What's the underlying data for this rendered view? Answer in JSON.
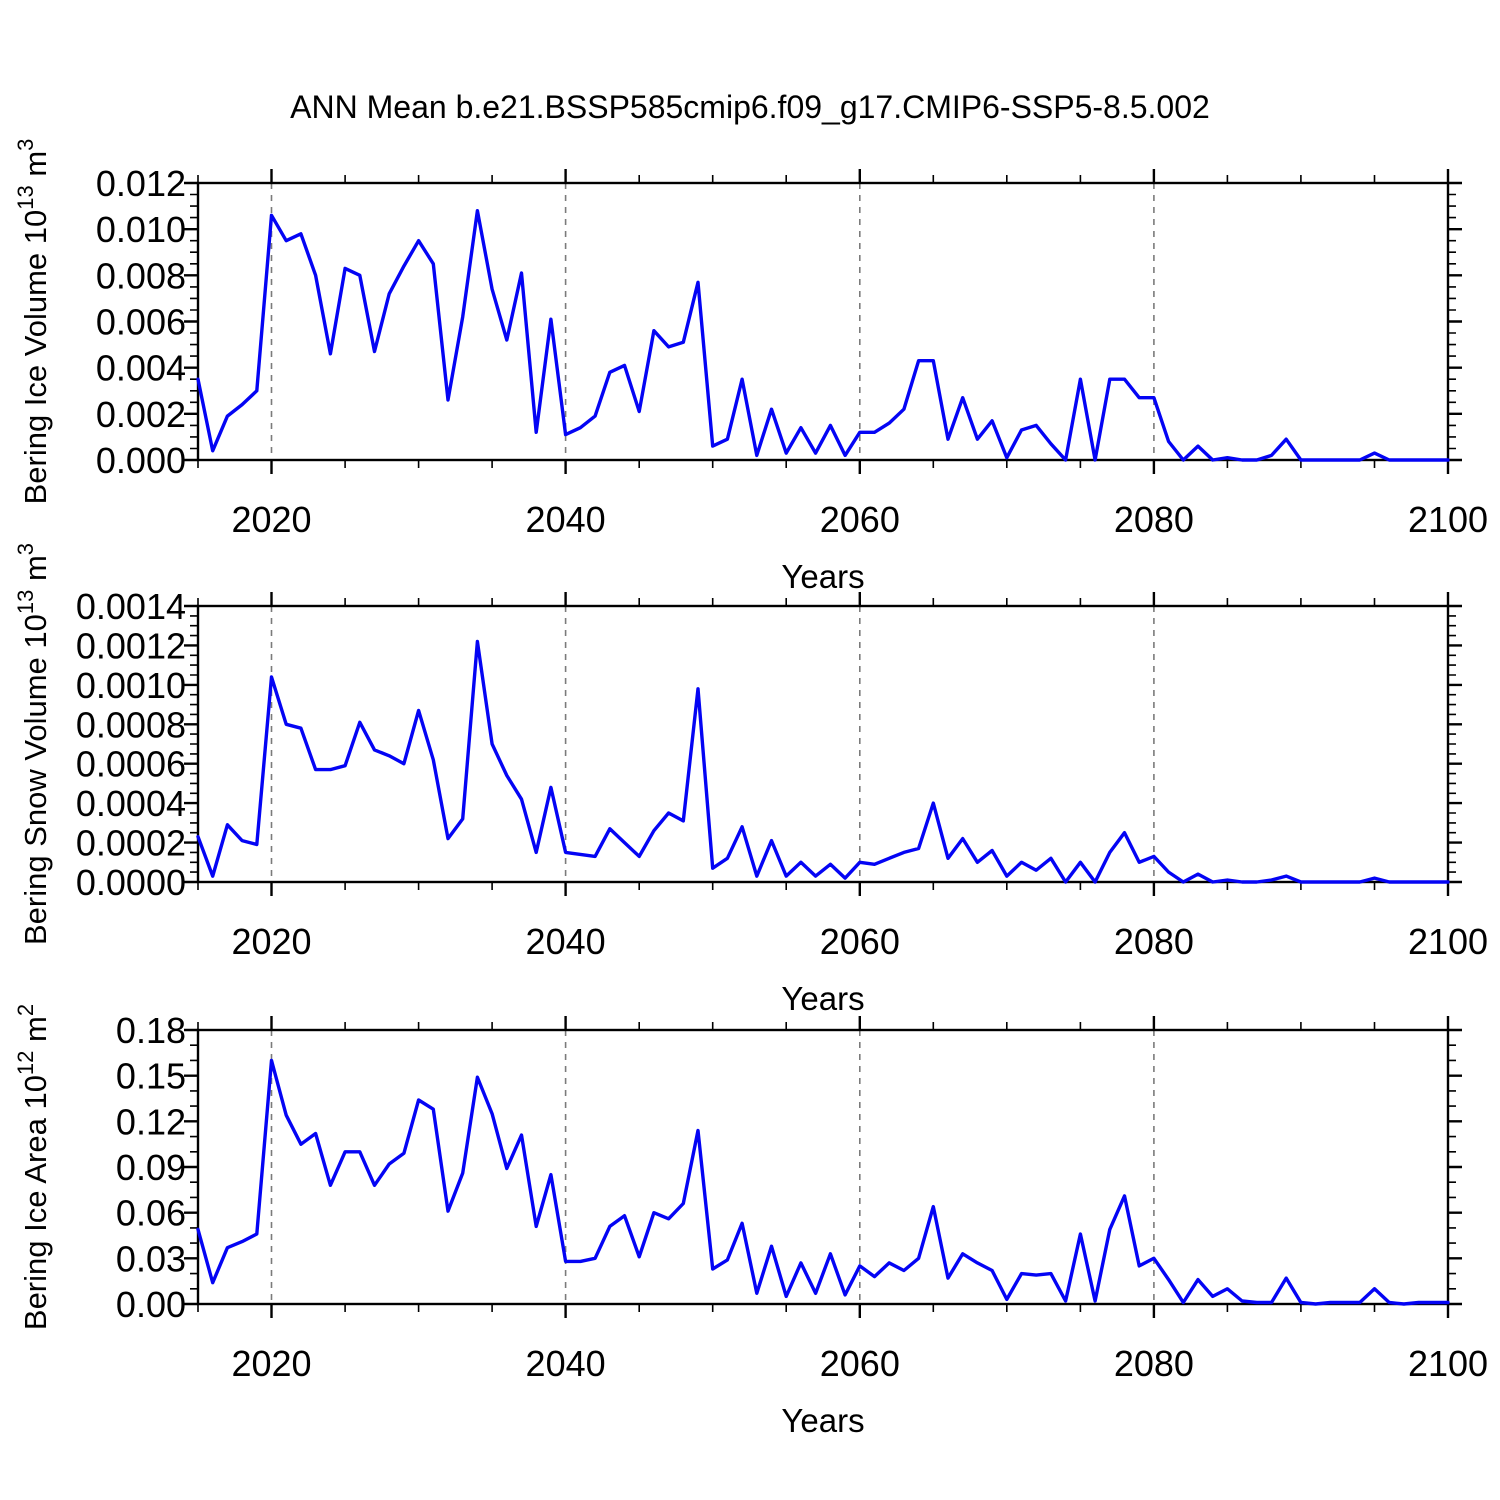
{
  "title": "ANN Mean b.e21.BSSP585cmip6.f09_g17.CMIP6-SSP5-8.5.002",
  "colors": {
    "line": "#0404f4",
    "frame": "#000000",
    "grid": "#7b7b7b",
    "text": "#000000",
    "background": "#ffffff"
  },
  "years": [
    2015,
    2016,
    2017,
    2018,
    2019,
    2020,
    2021,
    2022,
    2023,
    2024,
    2025,
    2026,
    2027,
    2028,
    2029,
    2030,
    2031,
    2032,
    2033,
    2034,
    2035,
    2036,
    2037,
    2038,
    2039,
    2040,
    2041,
    2042,
    2043,
    2044,
    2045,
    2046,
    2047,
    2048,
    2049,
    2050,
    2051,
    2052,
    2053,
    2054,
    2055,
    2056,
    2057,
    2058,
    2059,
    2060,
    2061,
    2062,
    2063,
    2064,
    2065,
    2066,
    2067,
    2068,
    2069,
    2070,
    2071,
    2072,
    2073,
    2074,
    2075,
    2076,
    2077,
    2078,
    2079,
    2080,
    2081,
    2082,
    2083,
    2084,
    2085,
    2086,
    2087,
    2088,
    2089,
    2090,
    2091,
    2092,
    2093,
    2094,
    2095,
    2096,
    2097,
    2098,
    2099,
    2100
  ],
  "chart_data": [
    {
      "type": "line",
      "name": "bering-ice-volume",
      "xlabel": "Years",
      "ylabel": "Bering Ice Volume 10^13 m^3",
      "ylabel_parts": [
        [
          "Bering Ice Volume 10",
          "n"
        ],
        [
          "13",
          "s"
        ],
        [
          " m",
          "n"
        ],
        [
          "3",
          "s"
        ]
      ],
      "xlim": [
        2015,
        2100
      ],
      "x_major_ticks": [
        2020,
        2040,
        2060,
        2080,
        2100
      ],
      "x_tick_labels": [
        "2020",
        "2040",
        "2060",
        "2080",
        "2100"
      ],
      "x_minor_step": 5,
      "grid_x": [
        2020,
        2040,
        2060,
        2080
      ],
      "ylim": [
        0,
        0.012
      ],
      "y_major_step": 0.002,
      "y_minor_step": 0.0005,
      "y_tick_labels": [
        "0.000",
        "0.002",
        "0.004",
        "0.006",
        "0.008",
        "0.010",
        "0.012"
      ],
      "values": [
        0.0035,
        0.0004,
        0.0019,
        0.0024,
        0.003,
        0.0106,
        0.0095,
        0.0098,
        0.008,
        0.0046,
        0.0083,
        0.008,
        0.0047,
        0.0072,
        0.0084,
        0.0095,
        0.0085,
        0.0026,
        0.0062,
        0.0108,
        0.0074,
        0.0052,
        0.0081,
        0.0012,
        0.0061,
        0.0011,
        0.0014,
        0.0019,
        0.0038,
        0.0041,
        0.0021,
        0.0056,
        0.0049,
        0.0051,
        0.0077,
        0.0006,
        0.0009,
        0.0035,
        0.0002,
        0.0022,
        0.0003,
        0.0014,
        0.0003,
        0.0015,
        0.0002,
        0.0012,
        0.0012,
        0.0016,
        0.0022,
        0.0043,
        0.0043,
        0.0009,
        0.0027,
        0.0009,
        0.0017,
        0.0001,
        0.0013,
        0.0015,
        0.0007,
        0.0,
        0.0035,
        0.0,
        0.0035,
        0.0035,
        0.0027,
        0.0027,
        0.0008,
        0.0,
        0.0006,
        0.0,
        0.0001,
        0.0,
        0.0,
        0.0002,
        0.0009,
        0.0,
        0.0,
        0.0,
        0.0,
        0.0,
        0.0003,
        0.0,
        0.0,
        0.0,
        0.0,
        0.0
      ]
    },
    {
      "type": "line",
      "name": "bering-snow-volume",
      "xlabel": "Years",
      "ylabel": "Bering Snow Volume 10^13 m^3",
      "ylabel_parts": [
        [
          "Bering Snow Volume 10",
          "n"
        ],
        [
          "13",
          "s"
        ],
        [
          " m",
          "n"
        ],
        [
          "3",
          "s"
        ]
      ],
      "xlim": [
        2015,
        2100
      ],
      "x_major_ticks": [
        2020,
        2040,
        2060,
        2080,
        2100
      ],
      "x_tick_labels": [
        "2020",
        "2040",
        "2060",
        "2080",
        "2100"
      ],
      "x_minor_step": 5,
      "grid_x": [
        2020,
        2040,
        2060,
        2080
      ],
      "ylim": [
        0,
        0.0014
      ],
      "y_major_step": 0.0002,
      "y_minor_step": 5e-05,
      "y_tick_labels": [
        "0.0000",
        "0.0002",
        "0.0004",
        "0.0006",
        "0.0008",
        "0.0010",
        "0.0012",
        "0.0014"
      ],
      "values": [
        0.00023,
        3e-05,
        0.00029,
        0.00021,
        0.00019,
        0.00104,
        0.0008,
        0.00078,
        0.00057,
        0.00057,
        0.00059,
        0.00081,
        0.00067,
        0.00064,
        0.0006,
        0.00087,
        0.00062,
        0.00022,
        0.00032,
        0.00122,
        0.0007,
        0.00054,
        0.00042,
        0.00015,
        0.00048,
        0.00015,
        0.00014,
        0.00013,
        0.00027,
        0.0002,
        0.00013,
        0.00026,
        0.00035,
        0.00031,
        0.00098,
        7e-05,
        0.00012,
        0.00028,
        3e-05,
        0.00021,
        3e-05,
        0.0001,
        3e-05,
        9e-05,
        2e-05,
        0.0001,
        9e-05,
        0.00012,
        0.00015,
        0.00017,
        0.0004,
        0.00012,
        0.00022,
        0.0001,
        0.00016,
        3e-05,
        0.0001,
        6e-05,
        0.00012,
        0.0,
        0.0001,
        0.0,
        0.00015,
        0.00025,
        0.0001,
        0.00013,
        5e-05,
        0.0,
        4e-05,
        0.0,
        1e-05,
        0.0,
        0.0,
        1e-05,
        3e-05,
        0.0,
        0.0,
        0.0,
        0.0,
        0.0,
        2e-05,
        0.0,
        0.0,
        0.0,
        0.0,
        0.0
      ]
    },
    {
      "type": "line",
      "name": "bering-ice-area",
      "xlabel": "Years",
      "ylabel": "Bering Ice Area 10^12 m^2",
      "ylabel_parts": [
        [
          "Bering Ice Area 10",
          "n"
        ],
        [
          "12",
          "s"
        ],
        [
          " m",
          "n"
        ],
        [
          "2",
          "s"
        ]
      ],
      "xlim": [
        2015,
        2100
      ],
      "x_major_ticks": [
        2020,
        2040,
        2060,
        2080,
        2100
      ],
      "x_tick_labels": [
        "2020",
        "2040",
        "2060",
        "2080",
        "2100"
      ],
      "x_minor_step": 5,
      "grid_x": [
        2020,
        2040,
        2060,
        2080
      ],
      "ylim": [
        0,
        0.18
      ],
      "y_major_step": 0.03,
      "y_minor_step": 0.01,
      "y_tick_labels": [
        "0.00",
        "0.03",
        "0.06",
        "0.09",
        "0.12",
        "0.15",
        "0.18"
      ],
      "values": [
        0.049,
        0.014,
        0.037,
        0.041,
        0.046,
        0.16,
        0.124,
        0.105,
        0.112,
        0.078,
        0.1,
        0.1,
        0.078,
        0.092,
        0.099,
        0.134,
        0.128,
        0.061,
        0.086,
        0.149,
        0.125,
        0.089,
        0.111,
        0.051,
        0.085,
        0.028,
        0.028,
        0.03,
        0.051,
        0.058,
        0.031,
        0.06,
        0.056,
        0.066,
        0.114,
        0.023,
        0.029,
        0.053,
        0.007,
        0.038,
        0.005,
        0.027,
        0.007,
        0.033,
        0.006,
        0.025,
        0.018,
        0.027,
        0.022,
        0.03,
        0.064,
        0.017,
        0.033,
        0.027,
        0.022,
        0.003,
        0.02,
        0.019,
        0.02,
        0.002,
        0.046,
        0.002,
        0.049,
        0.071,
        0.025,
        0.03,
        0.016,
        0.001,
        0.016,
        0.005,
        0.01,
        0.002,
        0.001,
        0.001,
        0.017,
        0.001,
        0.0,
        0.001,
        0.001,
        0.001,
        0.01,
        0.001,
        0.0,
        0.001,
        0.001,
        0.001
      ]
    }
  ]
}
